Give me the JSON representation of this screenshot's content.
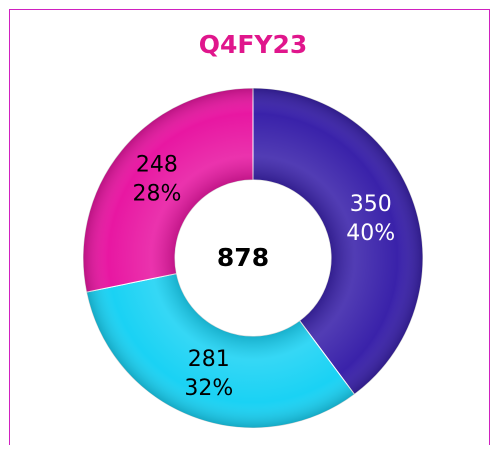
{
  "chart_data": {
    "type": "donut",
    "title": "Q4FY23",
    "center_label": 878,
    "series": [
      {
        "name": null,
        "color": "#3a22aa",
        "values": [
          350,
          281,
          248
        ]
      }
    ],
    "segment_colors": [
      "#3a22aa",
      "#1ad2f4",
      "#e817a2"
    ],
    "percent_labels": [
      "40%",
      "32%",
      "28%"
    ],
    "label_colors": [
      "#ffffff",
      "#000000",
      "#000000"
    ]
  }
}
